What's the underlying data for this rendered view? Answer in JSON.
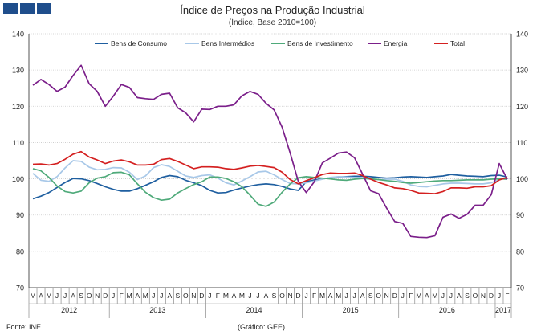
{
  "header": {
    "title": "Índice de Preços na Produção Industrial",
    "subtitle": "(Índice, Base 2010=100)",
    "logo_icon": "ine-logo-boxes"
  },
  "footer": {
    "source": "Fonte: INE",
    "credit": "(Gráfico: GEE)"
  },
  "chart_data": {
    "type": "line",
    "ylim": [
      70,
      140
    ],
    "yticks": [
      70,
      80,
      90,
      100,
      110,
      120,
      130,
      140
    ],
    "y_axes": "left-and-right",
    "grid": true,
    "legend_position": "top",
    "month_labels": [
      "M",
      "A",
      "M",
      "J",
      "J",
      "A",
      "S",
      "O",
      "N",
      "D",
      "J",
      "F",
      "M",
      "A",
      "M",
      "J",
      "J",
      "A",
      "S",
      "O",
      "N",
      "D",
      "J",
      "F",
      "M",
      "A",
      "M",
      "J",
      "J",
      "A",
      "S",
      "O",
      "N",
      "D",
      "J",
      "F",
      "M",
      "A",
      "M",
      "J",
      "J",
      "A",
      "S",
      "O",
      "N",
      "D",
      "J",
      "F",
      "M",
      "A",
      "M",
      "J",
      "J",
      "A",
      "S",
      "O",
      "N",
      "D",
      "J",
      "F"
    ],
    "year_labels": [
      {
        "label": "2012",
        "start": 0,
        "end": 9
      },
      {
        "label": "2013",
        "start": 10,
        "end": 21
      },
      {
        "label": "2014",
        "start": 22,
        "end": 33
      },
      {
        "label": "2015",
        "start": 34,
        "end": 45
      },
      {
        "label": "2016",
        "start": 46,
        "end": 57
      },
      {
        "label": "2017",
        "start": 58,
        "end": 59
      }
    ],
    "x_start": "2012-03",
    "x_end": "2017-02",
    "series": [
      {
        "name": "Bens de Consumo",
        "color": "#1f5fa0",
        "values": [
          94.5,
          95.2,
          96.2,
          97.6,
          99.0,
          100.1,
          100.0,
          99.5,
          98.7,
          97.8,
          97.1,
          96.6,
          96.6,
          97.3,
          98.2,
          99.2,
          100.4,
          100.9,
          100.6,
          99.6,
          98.9,
          98.1,
          96.8,
          96.1,
          96.2,
          96.9,
          97.5,
          98.0,
          98.4,
          98.6,
          98.4,
          97.9,
          97.2,
          96.8,
          99.2,
          99.7,
          100.0,
          100.3,
          100.5,
          100.6,
          100.7,
          100.7,
          100.6,
          100.4,
          100.2,
          100.3,
          100.5,
          100.6,
          100.5,
          100.4,
          100.6,
          100.8,
          101.2,
          101.0,
          100.8,
          100.7,
          100.6,
          100.9,
          101.0,
          100.5
        ]
      },
      {
        "name": "Bens Intermédios",
        "color": "#a8c8e8",
        "values": [
          101.5,
          99.6,
          99.3,
          100.6,
          103.0,
          105.0,
          104.8,
          103.2,
          102.5,
          102.6,
          103.1,
          103.0,
          101.8,
          99.8,
          100.8,
          103.1,
          103.9,
          103.4,
          102.1,
          100.8,
          100.4,
          100.9,
          101.1,
          100.2,
          98.9,
          98.3,
          99.4,
          100.6,
          101.9,
          102.1,
          101.1,
          99.8,
          98.7,
          98.6,
          98.9,
          99.4,
          99.9,
          100.4,
          100.6,
          100.5,
          100.4,
          100.2,
          99.9,
          99.8,
          99.9,
          99.9,
          99.3,
          98.3,
          97.9,
          97.8,
          98.2,
          98.6,
          98.8,
          98.8,
          98.7,
          98.6,
          98.6,
          98.9,
          99.8,
          100.3
        ]
      },
      {
        "name": "Bens de Investimento",
        "color": "#4faa7a",
        "values": [
          102.8,
          102.2,
          100.4,
          98.0,
          96.5,
          96.1,
          96.6,
          98.9,
          100.2,
          100.6,
          101.7,
          101.8,
          101.1,
          98.6,
          96.3,
          94.8,
          94.1,
          94.4,
          96.1,
          97.3,
          98.4,
          99.2,
          100.5,
          100.5,
          100.1,
          99.2,
          97.8,
          95.5,
          93.0,
          92.4,
          93.6,
          96.3,
          98.6,
          100.3,
          100.6,
          100.4,
          100.2,
          100.0,
          99.7,
          99.6,
          99.9,
          100.1,
          100.0,
          99.8,
          99.5,
          99.3,
          99.0,
          98.8,
          99.0,
          99.2,
          99.4,
          99.5,
          99.5,
          99.6,
          99.7,
          99.7,
          99.7,
          99.9,
          100.0,
          99.9
        ]
      },
      {
        "name": "Energia",
        "color": "#7b1f8a",
        "values": [
          125.8,
          127.4,
          126.0,
          124.1,
          125.3,
          128.5,
          131.3,
          126.2,
          124.1,
          120.0,
          122.8,
          126.0,
          125.2,
          122.4,
          122.1,
          121.9,
          123.3,
          123.6,
          119.6,
          118.2,
          115.7,
          119.2,
          119.1,
          120.0,
          120.0,
          120.4,
          122.9,
          124.1,
          123.3,
          120.8,
          119.0,
          114.2,
          107.1,
          99.3,
          96.2,
          99.2,
          104.4,
          105.7,
          107.1,
          107.4,
          105.8,
          101.3,
          96.7,
          95.9,
          91.9,
          88.2,
          87.7,
          84.1,
          83.9,
          83.8,
          84.3,
          89.4,
          90.3,
          89.1,
          90.2,
          92.7,
          92.7,
          95.6,
          104.2,
          99.9
        ]
      },
      {
        "name": "Total",
        "color": "#d42020",
        "values": [
          104.0,
          104.1,
          103.8,
          104.2,
          105.4,
          106.8,
          107.5,
          106.0,
          105.2,
          104.2,
          104.9,
          105.2,
          104.7,
          103.8,
          103.8,
          104.0,
          105.3,
          105.6,
          104.8,
          103.8,
          102.8,
          103.3,
          103.3,
          103.2,
          102.8,
          102.6,
          103.0,
          103.5,
          103.7,
          103.4,
          103.1,
          101.8,
          99.8,
          98.6,
          99.5,
          100.3,
          101.2,
          101.6,
          101.5,
          101.5,
          101.6,
          100.9,
          99.9,
          99.0,
          98.3,
          97.5,
          97.3,
          96.8,
          96.1,
          96.0,
          95.9,
          96.5,
          97.5,
          97.5,
          97.4,
          97.8,
          97.8,
          98.1,
          99.7,
          100.4
        ]
      }
    ]
  }
}
